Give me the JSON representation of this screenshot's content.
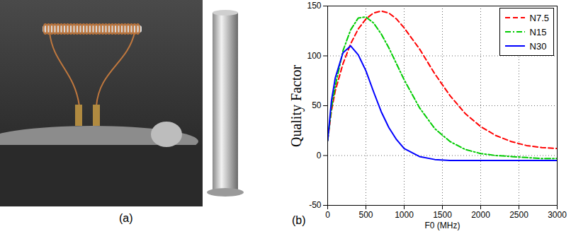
{
  "photo": {
    "label": "(a)"
  },
  "chart_data": {
    "type": "line",
    "panel_label": "(b)",
    "x_label": "F0 (MHz)",
    "y_label": "Quality Factor",
    "x": [
      0,
      50,
      100,
      200,
      300,
      400,
      500,
      600,
      700,
      800,
      900,
      1000,
      1200,
      1400,
      1600,
      1800,
      2000,
      2200,
      2400,
      2600,
      2800,
      3000
    ],
    "series": [
      {
        "name": "N7.5",
        "color": "#ff0000",
        "line_style": "dashed",
        "values": [
          15,
          45,
          65,
          92,
          112,
          127,
          137,
          143,
          145,
          143,
          137,
          128,
          107,
          82,
          60,
          42,
          29,
          20,
          14,
          10,
          8,
          7
        ]
      },
      {
        "name": "N15",
        "color": "#00cc00",
        "line_style": "dashdot",
        "values": [
          15,
          48,
          70,
          105,
          126,
          138,
          139,
          133,
          122,
          108,
          92,
          76,
          48,
          27,
          14,
          6,
          2,
          0,
          -1,
          -2,
          -3,
          -3
        ]
      },
      {
        "name": "N30",
        "color": "#0000ff",
        "line_style": "solid",
        "values": [
          15,
          55,
          78,
          103,
          110,
          101,
          85,
          64,
          44,
          28,
          16,
          7,
          -1,
          -4,
          -5,
          -5,
          -5,
          -5,
          -5,
          -5,
          -5,
          -5
        ]
      }
    ],
    "xlim": [
      0,
      3000
    ],
    "xticks": [
      0,
      500,
      1000,
      1500,
      2000,
      2500,
      3000
    ],
    "ylim": [
      -50,
      150
    ],
    "yticks": [
      -50,
      0,
      50,
      100,
      150
    ],
    "grid": true,
    "legend": "top-right"
  }
}
